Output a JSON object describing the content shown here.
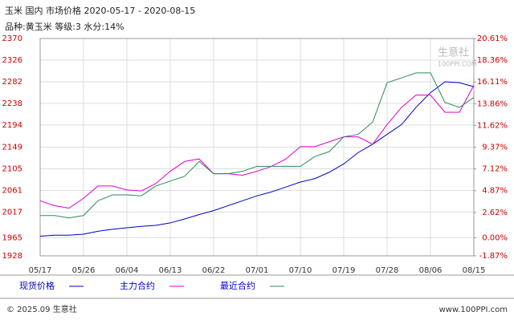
{
  "chart_data": {
    "type": "line",
    "header": [
      "玉米 国内 市场价格 2020-05-17 - 2020-08-15",
      "品种:黄玉米 等级:3 水分:14%"
    ],
    "watermark": [
      "生意社",
      "100PPI.COM"
    ],
    "footer": [
      "© 2025.09 生意社",
      "www.100PPI.com"
    ],
    "xlim": [
      0,
      90
    ],
    "xticks": [
      {
        "value": 0,
        "label": "05/17"
      },
      {
        "value": 9,
        "label": "05/26"
      },
      {
        "value": 18,
        "label": "06/04"
      },
      {
        "value": 27,
        "label": "06/13"
      },
      {
        "value": 36,
        "label": "06/22"
      },
      {
        "value": 45,
        "label": "07/01"
      },
      {
        "value": 54,
        "label": "07/10"
      },
      {
        "value": 63,
        "label": "07/19"
      },
      {
        "value": 72,
        "label": "07/28"
      },
      {
        "value": 81,
        "label": "08/06"
      },
      {
        "value": 90,
        "label": "08/15"
      }
    ],
    "ylim": [
      1928,
      2370
    ],
    "yticks": [
      1928,
      1965,
      2017,
      2061,
      2105,
      2149,
      2194,
      2238,
      2282,
      2326,
      2370
    ],
    "y2lim": [
      -1.87,
      20.61
    ],
    "y2ticks": [
      {
        "value": -1.87,
        "label": "-1.87%"
      },
      {
        "value": 0,
        "label": "0.00%"
      },
      {
        "value": 2.62,
        "label": "2.62%"
      },
      {
        "value": 4.87,
        "label": "4.87%"
      },
      {
        "value": 7.12,
        "label": "7.12%"
      },
      {
        "value": 9.37,
        "label": "9.37%"
      },
      {
        "value": 11.62,
        "label": "11.62%"
      },
      {
        "value": 13.86,
        "label": "13.86%"
      },
      {
        "value": 16.11,
        "label": "16.11%"
      },
      {
        "value": 18.36,
        "label": "18.36%"
      },
      {
        "value": 20.61,
        "label": "20.61%"
      }
    ],
    "grid": true,
    "x": [
      0,
      3,
      6,
      9,
      12,
      15,
      18,
      21,
      24,
      27,
      30,
      33,
      36,
      39,
      42,
      45,
      48,
      51,
      54,
      57,
      60,
      63,
      66,
      69,
      72,
      75,
      78,
      81,
      84,
      87,
      90
    ],
    "series": [
      {
        "name": "现货价格",
        "color": "#0000cc",
        "values": [
          1968,
          1970,
          1970,
          1972,
          1978,
          1982,
          1985,
          1988,
          1990,
          1995,
          2003,
          2012,
          2020,
          2030,
          2040,
          2050,
          2058,
          2068,
          2078,
          2085,
          2098,
          2115,
          2138,
          2155,
          2175,
          2195,
          2230,
          2260,
          2282,
          2280,
          2272
        ]
      },
      {
        "name": "主力合约",
        "color": "#e000d0",
        "values": [
          2040,
          2030,
          2025,
          2045,
          2070,
          2070,
          2062,
          2060,
          2075,
          2100,
          2120,
          2125,
          2095,
          2095,
          2092,
          2100,
          2110,
          2125,
          2150,
          2150,
          2160,
          2170,
          2170,
          2155,
          2195,
          2230,
          2255,
          2255,
          2220,
          2220,
          2275
        ]
      },
      {
        "name": "最近合约",
        "color": "#2e8b57",
        "values": [
          2010,
          2010,
          2005,
          2010,
          2040,
          2052,
          2052,
          2050,
          2070,
          2080,
          2090,
          2120,
          2095,
          2095,
          2100,
          2110,
          2110,
          2110,
          2110,
          2130,
          2140,
          2170,
          2175,
          2200,
          2280,
          2290,
          2300,
          2300,
          2240,
          2230,
          2250
        ]
      }
    ]
  }
}
